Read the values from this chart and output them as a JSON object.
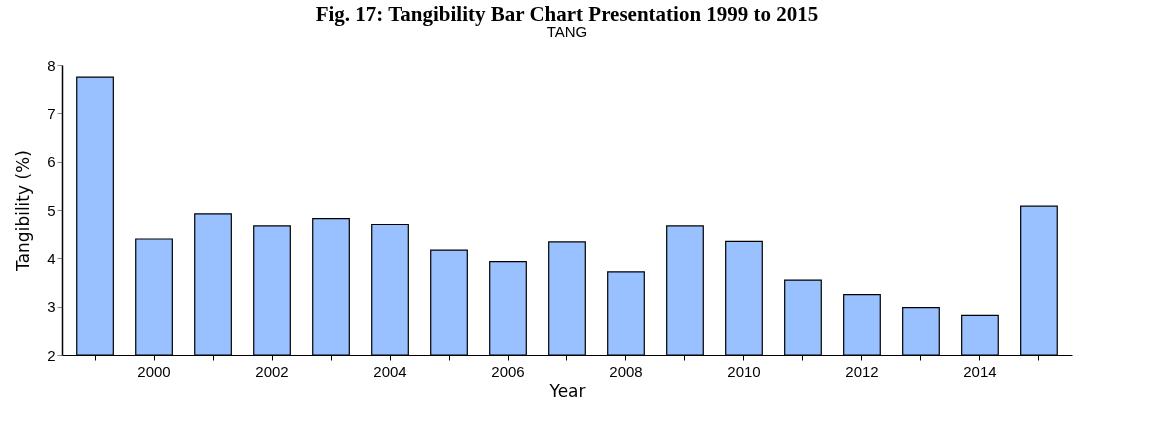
{
  "chart_data": {
    "type": "bar",
    "title": "Fig. 17: Tangibility Bar Chart Presentation 1999 to 2015",
    "subtitle": "TANG",
    "xlabel": "Year",
    "ylabel": "Tangibility (%)",
    "categories": [
      null,
      "2000",
      null,
      "2002",
      null,
      "2004",
      null,
      "2006",
      null,
      "2008",
      null,
      "2010",
      null,
      "2012",
      null,
      "2014",
      null
    ],
    "values": [
      7.75,
      4.4,
      4.92,
      4.67,
      4.82,
      4.7,
      4.17,
      3.93,
      4.34,
      3.72,
      4.67,
      4.35,
      3.55,
      3.25,
      2.98,
      2.82,
      5.08
    ],
    "color": "#99c0ff",
    "ylim": [
      2,
      8
    ],
    "yticks": [
      2,
      3,
      4,
      5,
      6,
      7,
      8
    ],
    "grid": false
  }
}
